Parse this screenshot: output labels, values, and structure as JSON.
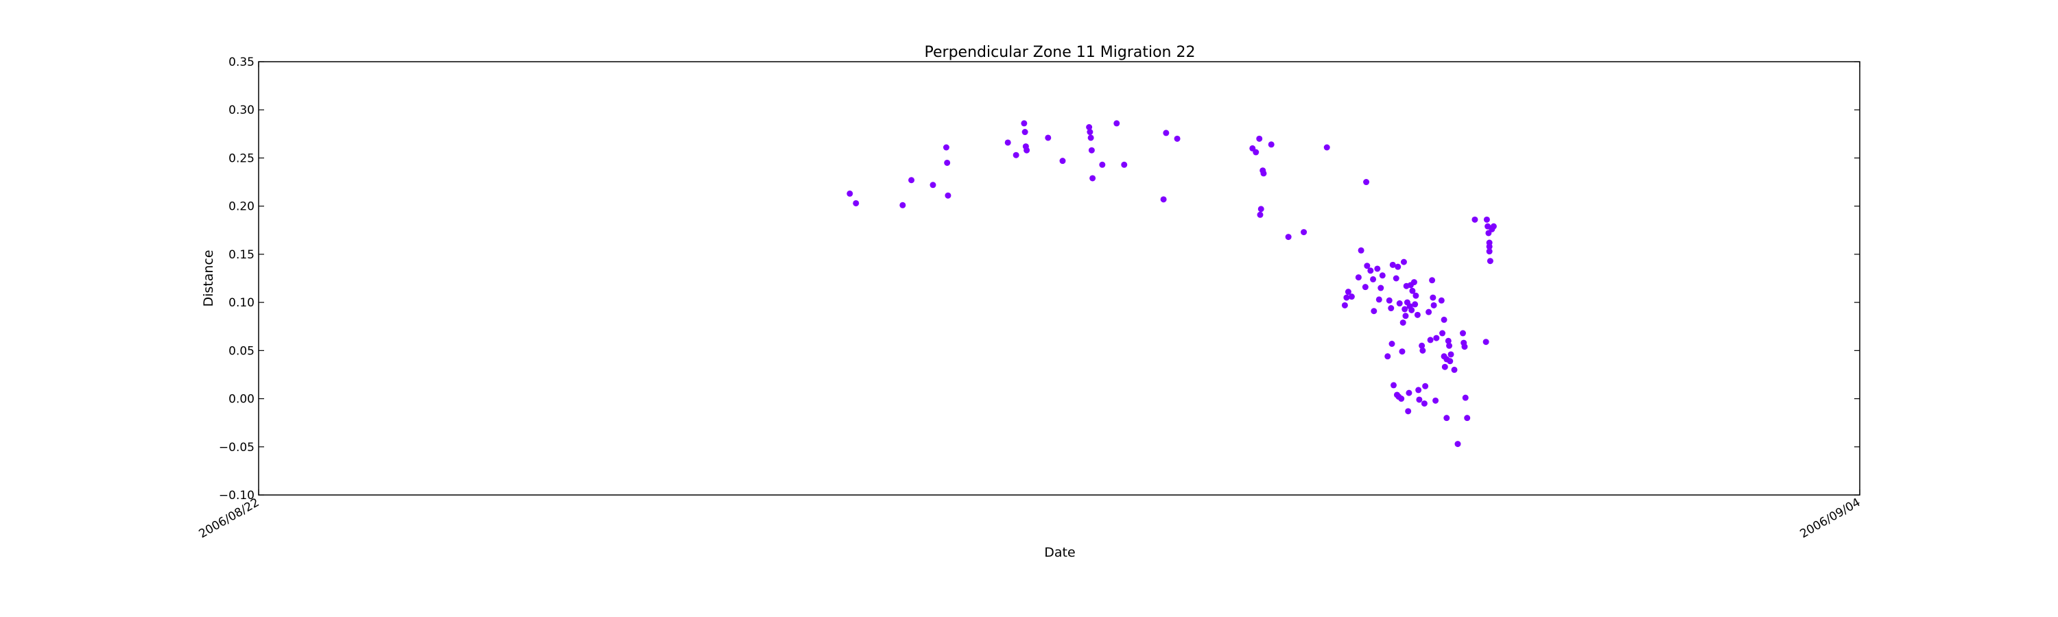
{
  "chart_data": {
    "type": "scatter",
    "title": "Perpendicular Zone 11 Migration 22",
    "xlabel": "Date",
    "ylabel": "Distance",
    "xlim": [
      "2006/08/22",
      "2006/09/04"
    ],
    "ylim": [
      -0.1,
      0.35
    ],
    "x_ticks": [
      "2006/08/22",
      "2006/09/04"
    ],
    "y_ticks": [
      "−0.10",
      "−0.05",
      "0.00",
      "0.05",
      "0.10",
      "0.15",
      "0.20",
      "0.25",
      "0.30",
      "0.35"
    ],
    "y_tick_values": [
      -0.1,
      -0.05,
      0.0,
      0.05,
      0.1,
      0.15,
      0.2,
      0.25,
      0.3,
      0.35
    ],
    "grid": false,
    "marker_color": "#8000ff",
    "points": [
      [
        "2006/08/26 19:12",
        0.213
      ],
      [
        "2006/08/26 20:24",
        0.203
      ],
      [
        "2006/08/27 05:30",
        0.201
      ],
      [
        "2006/08/27 07:12",
        0.227
      ],
      [
        "2006/08/27 11:24",
        0.222
      ],
      [
        "2006/08/27 14:00",
        0.261
      ],
      [
        "2006/08/27 14:10",
        0.245
      ],
      [
        "2006/08/27 14:20",
        0.211
      ],
      [
        "2006/08/28 02:00",
        0.266
      ],
      [
        "2006/08/28 03:36",
        0.253
      ],
      [
        "2006/08/28 05:10",
        0.286
      ],
      [
        "2006/08/28 05:20",
        0.277
      ],
      [
        "2006/08/28 05:30",
        0.262
      ],
      [
        "2006/08/28 05:40",
        0.258
      ],
      [
        "2006/08/28 09:50",
        0.271
      ],
      [
        "2006/08/28 12:40",
        0.247
      ],
      [
        "2006/08/28 17:50",
        0.282
      ],
      [
        "2006/08/28 18:00",
        0.277
      ],
      [
        "2006/08/28 18:10",
        0.271
      ],
      [
        "2006/08/28 18:20",
        0.258
      ],
      [
        "2006/08/28 18:30",
        0.229
      ],
      [
        "2006/08/28 20:24",
        0.243
      ],
      [
        "2006/08/28 23:12",
        0.286
      ],
      [
        "2006/08/29 00:40",
        0.243
      ],
      [
        "2006/08/29 08:50",
        0.276
      ],
      [
        "2006/08/29 08:20",
        0.207
      ],
      [
        "2006/08/29 11:00",
        0.27
      ],
      [
        "2006/08/30 01:40",
        0.26
      ],
      [
        "2006/08/30 02:20",
        0.256
      ],
      [
        "2006/08/30 03:00",
        0.27
      ],
      [
        "2006/08/30 03:40",
        0.237
      ],
      [
        "2006/08/30 03:50",
        0.234
      ],
      [
        "2006/08/30 03:20",
        0.197
      ],
      [
        "2006/08/30 03:10",
        0.191
      ],
      [
        "2006/08/30 05:20",
        0.264
      ],
      [
        "2006/08/30 08:40",
        0.168
      ],
      [
        "2006/08/30 11:40",
        0.173
      ],
      [
        "2006/08/30 16:10",
        0.261
      ],
      [
        "2006/08/30 23:50",
        0.225
      ],
      [
        "2006/08/30 19:40",
        0.097
      ],
      [
        "2006/08/30 20:00",
        0.105
      ],
      [
        "2006/08/30 20:20",
        0.111
      ],
      [
        "2006/08/30 21:00",
        0.106
      ],
      [
        "2006/08/30 22:20",
        0.126
      ],
      [
        "2006/08/30 22:50",
        0.154
      ],
      [
        "2006/08/30 23:40",
        0.116
      ],
      [
        "2006/08/31 00:00",
        0.138
      ],
      [
        "2006/08/31 00:40",
        0.133
      ],
      [
        "2006/08/31 01:10",
        0.124
      ],
      [
        "2006/08/31 01:20",
        0.091
      ],
      [
        "2006/08/31 02:00",
        0.135
      ],
      [
        "2006/08/31 02:20",
        0.103
      ],
      [
        "2006/08/31 02:40",
        0.115
      ],
      [
        "2006/08/31 03:00",
        0.128
      ],
      [
        "2006/08/31 04:00",
        0.044
      ],
      [
        "2006/08/31 04:20",
        0.102
      ],
      [
        "2006/08/31 04:40",
        0.094
      ],
      [
        "2006/08/31 04:50",
        0.057
      ],
      [
        "2006/08/31 05:00",
        0.139
      ],
      [
        "2006/08/31 05:10",
        0.014
      ],
      [
        "2006/08/31 05:40",
        0.125
      ],
      [
        "2006/08/31 05:50",
        0.004
      ],
      [
        "2006/08/31 06:00",
        0.137
      ],
      [
        "2006/08/31 06:10",
        0.002
      ],
      [
        "2006/08/31 06:20",
        0.099
      ],
      [
        "2006/08/31 06:40",
        0.0
      ],
      [
        "2006/08/31 06:50",
        0.049
      ],
      [
        "2006/08/31 07:00",
        0.079
      ],
      [
        "2006/08/31 07:10",
        0.142
      ],
      [
        "2006/08/31 07:20",
        0.093
      ],
      [
        "2006/08/31 07:30",
        0.086
      ],
      [
        "2006/08/31 07:40",
        0.117
      ],
      [
        "2006/08/31 07:50",
        0.1
      ],
      [
        "2006/08/31 08:00",
        -0.013
      ],
      [
        "2006/08/31 08:10",
        0.006
      ],
      [
        "2006/08/31 08:20",
        0.096
      ],
      [
        "2006/08/31 08:30",
        0.118
      ],
      [
        "2006/08/31 08:40",
        0.092
      ],
      [
        "2006/08/31 08:50",
        0.112
      ],
      [
        "2006/08/31 09:10",
        0.121
      ],
      [
        "2006/08/31 09:20",
        0.098
      ],
      [
        "2006/08/31 09:30",
        0.107
      ],
      [
        "2006/08/31 09:50",
        0.087
      ],
      [
        "2006/08/31 10:00",
        0.009
      ],
      [
        "2006/08/31 10:10",
        -0.001
      ],
      [
        "2006/08/31 10:40",
        0.055
      ],
      [
        "2006/08/31 10:50",
        0.05
      ],
      [
        "2006/08/31 11:20",
        0.013
      ],
      [
        "2006/08/31 11:10",
        -0.005
      ],
      [
        "2006/08/31 12:00",
        0.09
      ],
      [
        "2006/08/31 12:20",
        0.061
      ],
      [
        "2006/08/31 12:40",
        0.123
      ],
      [
        "2006/08/31 12:50",
        0.105
      ],
      [
        "2006/08/31 13:00",
        0.097
      ],
      [
        "2006/08/31 13:20",
        -0.002
      ],
      [
        "2006/08/31 13:30",
        0.063
      ],
      [
        "2006/08/31 14:30",
        0.102
      ],
      [
        "2006/08/31 14:40",
        0.068
      ],
      [
        "2006/08/31 15:00",
        0.082
      ],
      [
        "2006/08/31 15:00",
        0.044
      ],
      [
        "2006/08/31 15:10",
        0.033
      ],
      [
        "2006/08/31 15:30",
        0.041
      ],
      [
        "2006/08/31 15:30",
        -0.02
      ],
      [
        "2006/08/31 15:50",
        0.06
      ],
      [
        "2006/08/31 16:00",
        0.055
      ],
      [
        "2006/08/31 16:10",
        0.039
      ],
      [
        "2006/08/31 16:20",
        0.046
      ],
      [
        "2006/08/31 17:00",
        0.03
      ],
      [
        "2006/08/31 17:40",
        -0.047
      ],
      [
        "2006/08/31 18:40",
        0.068
      ],
      [
        "2006/08/31 18:50",
        0.058
      ],
      [
        "2006/08/31 19:00",
        0.054
      ],
      [
        "2006/08/31 19:10",
        0.001
      ],
      [
        "2006/08/31 19:30",
        -0.02
      ],
      [
        "2006/08/31 21:00",
        0.186
      ],
      [
        "2006/08/31 23:10",
        0.059
      ],
      [
        "2006/08/31 23:20",
        0.186
      ],
      [
        "2006/08/31 23:30",
        0.179
      ],
      [
        "2006/08/31 23:40",
        0.172
      ],
      [
        "2006/08/31 23:50",
        0.162
      ],
      [
        "2006/08/31 23:50",
        0.158
      ],
      [
        "2006/08/31 23:50",
        0.153
      ],
      [
        "2006/09/01 00:00",
        0.143
      ],
      [
        "2006/09/01 00:20",
        0.176
      ],
      [
        "2006/09/01 00:40",
        0.179
      ]
    ]
  }
}
